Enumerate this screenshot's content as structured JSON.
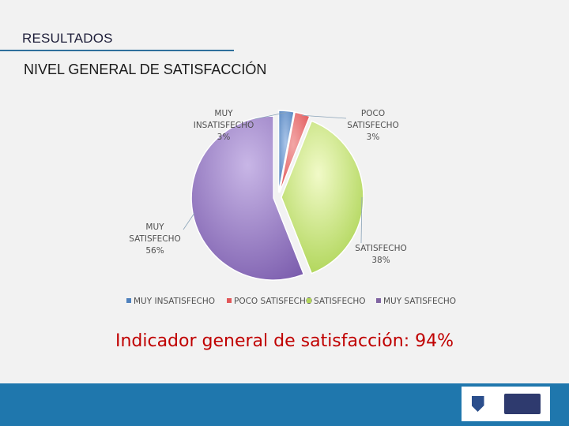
{
  "header": {
    "title": "RESULTADOS",
    "subtitle": "NIVEL GENERAL DE SATISFACCIÓN"
  },
  "chart_data": {
    "type": "pie",
    "title": "",
    "categories": [
      "MUY INSATISFECHO",
      "POCO SATISFECHO",
      "SATISFECHO",
      "MUY SATISFECHO"
    ],
    "values": [
      3,
      3,
      38,
      56
    ],
    "value_labels": [
      "3%",
      "3%",
      "38%",
      "56%"
    ],
    "slice_labels": [
      [
        "MUY",
        "INSATISFECHO",
        "3%"
      ],
      [
        "POCO",
        "SATISFECHO",
        "3%"
      ],
      [
        "SATISFECHO",
        "38%"
      ],
      [
        "MUY",
        "SATISFECHO",
        "56%"
      ]
    ],
    "colors": [
      "#4f81bd",
      "#e15759",
      "#b2d65a",
      "#8064a2"
    ],
    "legend": {
      "position": "bottom",
      "items": [
        "MUY INSATISFECHO",
        "POCO SATISFECHO",
        "SATISFECHO",
        "MUY SATISFECHO"
      ]
    }
  },
  "indicator": {
    "text": "Indicador general de satisfacción: 94%"
  },
  "footer": {
    "bar_color": "#1f77ad"
  }
}
